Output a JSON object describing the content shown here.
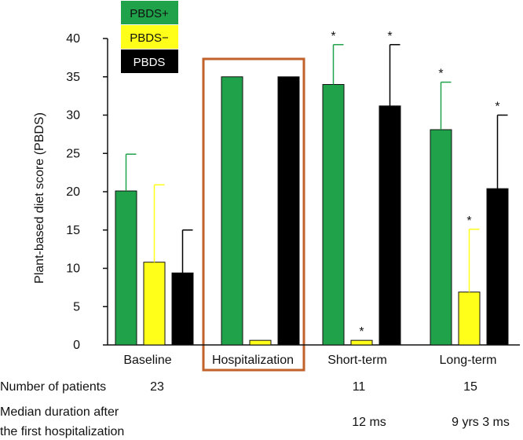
{
  "chart_data": {
    "type": "bar",
    "ylabel": "Plant-based diet score (PBDS)",
    "ylim": [
      0,
      40
    ],
    "yticks": [
      0,
      5,
      10,
      15,
      20,
      25,
      30,
      35,
      40
    ],
    "grid": false,
    "legend_position": "top-left",
    "categories": [
      "Baseline",
      "Hospitalization",
      "Short-term",
      "Long-term"
    ],
    "highlighted_category": "Hospitalization",
    "series": [
      {
        "name": "PBDS+",
        "color": "#1fa24a",
        "values": [
          20.1,
          35.0,
          34.0,
          28.1
        ],
        "errors": [
          4.8,
          null,
          5.2,
          6.2
        ],
        "error_color": "#1fa24a"
      },
      {
        "name": "PBDS−",
        "color": "#ffff1a",
        "values": [
          10.8,
          0.6,
          0.6,
          6.9
        ],
        "errors": [
          10.1,
          null,
          null,
          8.2
        ],
        "error_color": "#ffff1a"
      },
      {
        "name": "PBDS",
        "color": "#000000",
        "values": [
          9.4,
          35.0,
          31.2,
          20.4
        ],
        "errors": [
          5.6,
          null,
          8.0,
          9.6
        ],
        "error_color": "#000000"
      }
    ],
    "significance": [
      {
        "category": "Short-term",
        "series": "PBDS+",
        "mark": "*"
      },
      {
        "category": "Short-term",
        "series": "PBDS−",
        "mark": "*"
      },
      {
        "category": "Short-term",
        "series": "PBDS",
        "mark": "*"
      },
      {
        "category": "Long-term",
        "series": "PBDS+",
        "mark": "*"
      },
      {
        "category": "Long-term",
        "series": "PBDS−",
        "mark": "*"
      },
      {
        "category": "Long-term",
        "series": "PBDS",
        "mark": "*"
      }
    ]
  },
  "table": {
    "patients_label": "Number of patients",
    "patients": {
      "Baseline": "23",
      "Short-term": "11",
      "Long-term": "15"
    },
    "duration_label_line1": "Median duration after",
    "duration_label_line2": "the first hospitalization",
    "durations": {
      "Short-term": "12 ms",
      "Long-term": "9 yrs 3 ms"
    }
  }
}
